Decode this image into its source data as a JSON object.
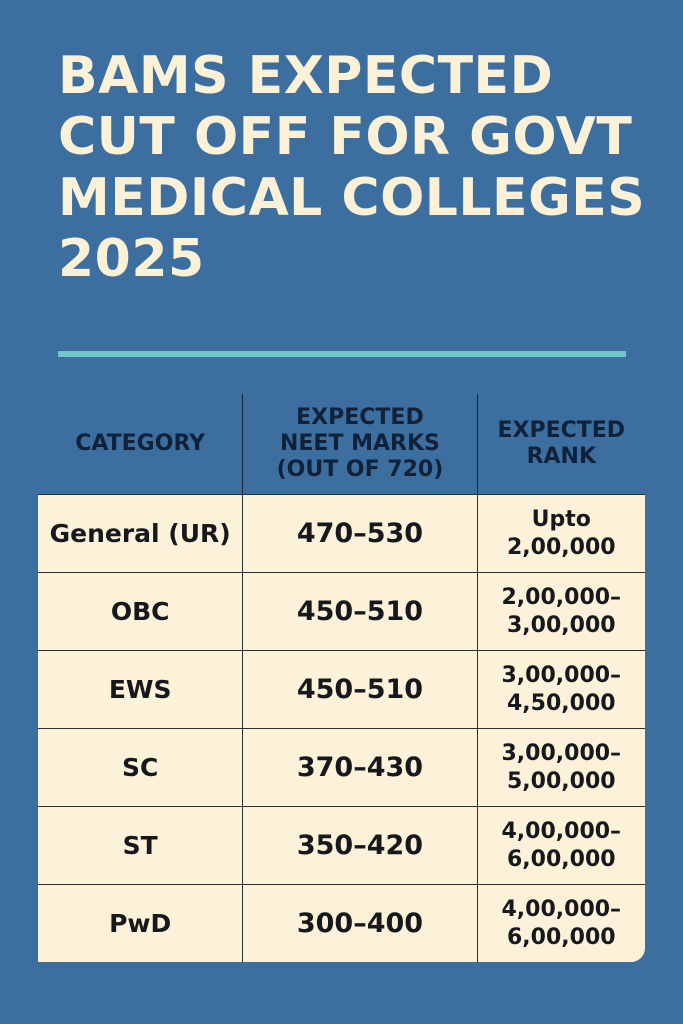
{
  "title_lines": [
    "BAMS EXPECTED",
    "CUT OFF FOR GOVT",
    "MEDICAL COLLEGES",
    "2025"
  ],
  "headers": [
    "CATEGORY",
    "EXPECTED NEET MARKS (OUT OF 720)",
    "EXPECTED RANK"
  ],
  "rows": [
    {
      "category": "General (UR)",
      "marks": "470–530",
      "rank": [
        "Upto",
        "2,00,000"
      ]
    },
    {
      "category": "OBC",
      "marks": "450–510",
      "rank": [
        "2,00,000–",
        "3,00,000"
      ]
    },
    {
      "category": "EWS",
      "marks": "450–510",
      "rank": [
        "3,00,000–",
        "4,50,000"
      ]
    },
    {
      "category": "SC",
      "marks": "370–430",
      "rank": [
        "3,00,000–",
        "5,00,000"
      ]
    },
    {
      "category": "ST",
      "marks": "350–420",
      "rank": [
        "4,00,000–",
        "6,00,000"
      ]
    },
    {
      "category": "PwD",
      "marks": "300–400",
      "rank": [
        "4,00,000–",
        "6,00,000"
      ]
    }
  ],
  "colors": {
    "background": "#3c6fa0",
    "title": "#fbf1d6",
    "divider": "#72c6c9",
    "table": "#fcf2da"
  }
}
